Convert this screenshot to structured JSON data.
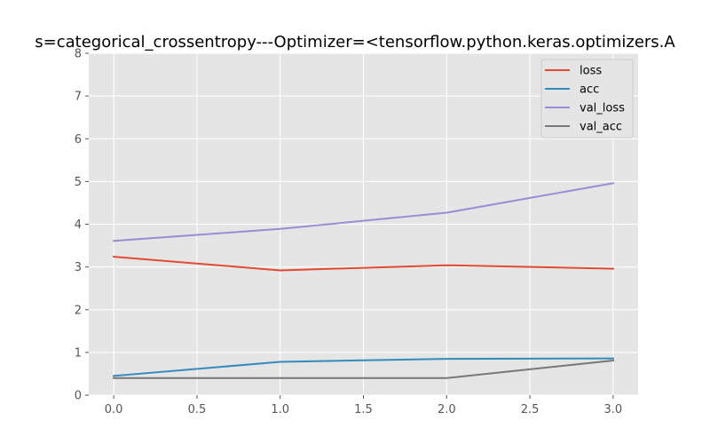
{
  "chart_data": {
    "type": "line",
    "title": "s=categorical_crossentropy---Optimizer=<tensorflow.python.keras.optimizers.A",
    "x": [
      0,
      1,
      2,
      3
    ],
    "xlim": [
      -0.15,
      3.15
    ],
    "ylim": [
      0,
      8
    ],
    "xticks": [
      "0.0",
      "0.5",
      "1.0",
      "1.5",
      "2.0",
      "2.5",
      "3.0"
    ],
    "yticks": [
      "0",
      "1",
      "2",
      "3",
      "4",
      "5",
      "6",
      "7",
      "8"
    ],
    "grid": true,
    "legend_position": "top-right",
    "series": [
      {
        "name": "loss",
        "color": "#E24A33",
        "values": [
          3.24,
          2.92,
          3.04,
          2.96
        ]
      },
      {
        "name": "acc",
        "color": "#348ABD",
        "values": [
          0.45,
          0.78,
          0.85,
          0.86
        ]
      },
      {
        "name": "val_loss",
        "color": "#988ED5",
        "values": [
          3.61,
          3.89,
          4.27,
          4.96
        ]
      },
      {
        "name": "val_acc",
        "color": "#777777",
        "values": [
          0.4,
          0.4,
          0.4,
          0.81
        ]
      }
    ]
  }
}
